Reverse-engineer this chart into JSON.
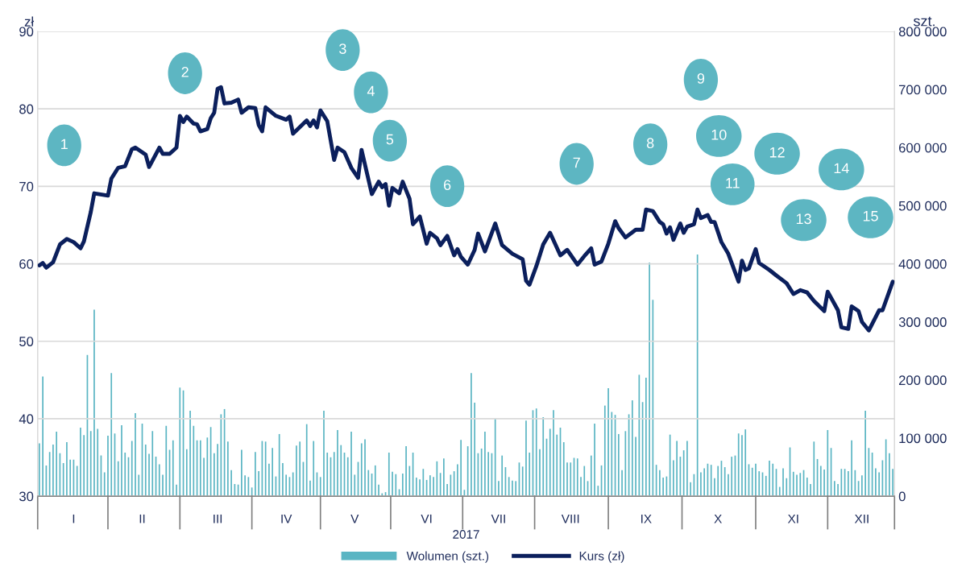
{
  "chart_data": {
    "type": "bar",
    "xlabel": "2017",
    "ylabel": "zł",
    "y2label": "szt.",
    "categories": [
      null,
      null,
      null,
      null,
      null,
      null,
      null,
      null,
      null,
      null,
      "I",
      null,
      null,
      null,
      null,
      null,
      null,
      null,
      null,
      null,
      null,
      null,
      null,
      null,
      null,
      null,
      null,
      null,
      null,
      null,
      "II",
      null,
      null,
      null,
      null,
      null,
      null,
      null,
      null,
      null,
      null,
      null,
      null,
      null,
      null,
      null,
      null,
      null,
      null,
      null,
      null,
      null,
      "III",
      null,
      null,
      null,
      null,
      null,
      null,
      null,
      null,
      null,
      null,
      null,
      null,
      null,
      null,
      null,
      null,
      null,
      null,
      null,
      "IV",
      null,
      null,
      null,
      null,
      null,
      null,
      null,
      null,
      null,
      null,
      null,
      null,
      null,
      null,
      null,
      null,
      null,
      null,
      null,
      "V",
      null,
      null,
      null,
      null,
      null,
      null,
      null,
      null,
      null,
      null,
      null,
      null,
      null,
      null,
      null,
      null,
      null,
      null,
      null,
      null,
      "VI",
      null,
      null,
      null,
      null,
      null,
      null,
      null,
      null,
      null,
      null,
      null,
      null,
      null,
      null,
      null,
      null,
      null,
      null,
      null,
      null,
      "VII",
      null,
      null,
      null,
      null,
      null,
      null,
      null,
      null,
      null,
      null,
      null,
      null,
      null,
      null,
      null,
      null,
      null,
      null,
      null,
      null,
      "VIII",
      null,
      null,
      null,
      null,
      null,
      null,
      null,
      null,
      null,
      null,
      null,
      null,
      null,
      null,
      null,
      null,
      null,
      null,
      null,
      null,
      null,
      "IX",
      null,
      null,
      null,
      null,
      null,
      null,
      null,
      null,
      null,
      null,
      null,
      null,
      null,
      null,
      null,
      null,
      null,
      null,
      null,
      null,
      "X",
      null,
      null,
      null,
      null,
      null,
      null,
      null,
      null,
      null,
      null,
      null,
      null,
      null,
      null,
      null,
      null,
      null,
      null,
      null,
      null,
      null,
      "XI",
      null,
      null,
      null,
      null,
      null,
      null,
      null,
      null,
      null,
      null,
      null,
      null,
      null,
      null,
      null,
      null,
      null,
      null,
      null,
      "XII",
      null,
      null,
      null,
      null,
      null,
      null,
      null,
      null,
      null
    ],
    "ylim": [
      30,
      90
    ],
    "yticks": [
      30,
      40,
      50,
      60,
      70,
      80,
      90
    ],
    "y2lim": [
      0,
      800000
    ],
    "y2ticks": [
      0,
      {
        "value": 100000,
        "label": "100 000"
      },
      {
        "value": 200000,
        "label": "200 000"
      },
      {
        "value": 300000,
        "label": "300 000"
      },
      {
        "value": 400000,
        "label": "400 000"
      },
      {
        "value": 500000,
        "label": "500 000"
      },
      {
        "value": 600000,
        "label": "600 000"
      },
      {
        "value": 700000,
        "label": "700 000"
      },
      {
        "value": 800000,
        "label": "800 000"
      }
    ],
    "grid": "y",
    "legend": "bottom",
    "series": [
      {
        "name": "Wolumen (szt.)",
        "axis": "y2",
        "color": "#5ab5c3",
        "values": [
          91000,
          206000,
          53000,
          76000,
          89000,
          111000,
          74000,
          57000,
          93000,
          63000,
          63000,
          52000,
          118000,
          105000,
          243000,
          112000,
          321000,
          116000,
          70000,
          41000,
          104000,
          212000,
          108000,
          60000,
          122000,
          75000,
          67000,
          95000,
          143000,
          37000,
          125000,
          89000,
          73000,
          112000,
          68000,
          55000,
          37000,
          121000,
          80000,
          96000,
          20000,
          187000,
          182000,
          81000,
          147000,
          121000,
          96000,
          96000,
          66000,
          101000,
          119000,
          74000,
          90000,
          141000,
          150000,
          94000,
          45000,
          21000,
          20000,
          80000,
          36000,
          33000,
          15000,
          76000,
          43000,
          95000,
          94000,
          56000,
          83000,
          34000,
          107000,
          57000,
          37000,
          33000,
          41000,
          87000,
          94000,
          59000,
          124000,
          27000,
          95000,
          41000,
          33000,
          147000,
          75000,
          67000,
          76000,
          114000,
          88000,
          75000,
          67000,
          111000,
          37000,
          59000,
          91000,
          98000,
          45000,
          39000,
          53000,
          20000,
          5000,
          7000,
          75000,
          42000,
          38000,
          12000,
          39000,
          86000,
          52000,
          75000,
          32000,
          29000,
          47000,
          28000,
          36000,
          33000,
          60000,
          40000,
          65000,
          21000,
          37000,
          43000,
          55000,
          97000,
          11000,
          86000,
          212000,
          161000,
          74000,
          82000,
          111000,
          76000,
          74000,
          133000,
          26000,
          70000,
          50000,
          33000,
          27000,
          26000,
          58000,
          51000,
          130000,
          75000,
          148000,
          151000,
          81000,
          136000,
          99000,
          116000,
          148000,
          106000,
          118000,
          93000,
          58000,
          58000,
          66000,
          65000,
          33000,
          52000,
          26000,
          70000,
          125000,
          18000,
          53000,
          156000,
          186000,
          145000,
          140000,
          107000,
          45000,
          112000,
          141000,
          165000,
          102000,
          209000,
          162000,
          204000,
          402000,
          338000,
          54000,
          45000,
          32000,
          34000,
          106000,
          62000,
          95000,
          68000,
          79000,
          95000,
          24000,
          38000,
          416000,
          41000,
          48000,
          56000,
          54000,
          31000,
          52000,
          61000,
          50000,
          38000,
          68000,
          70000,
          108000,
          105000,
          115000,
          55000,
          49000,
          56000,
          43000,
          41000,
          35000,
          61000,
          56000,
          47000,
          16000,
          48000,
          31000,
          84000,
          42000,
          37000,
          40000,
          45000,
          32000,
          21000,
          94000,
          64000,
          52000,
          46000,
          114000,
          83000,
          26000,
          21000,
          47000,
          47000,
          43000,
          96000,
          45000,
          26000,
          36000,
          147000,
          83000,
          75000,
          48000,
          41000,
          62000,
          98000,
          74000,
          47000
        ]
      },
      {
        "name": "Kurs (zł)",
        "type": "line",
        "color": "#0b1f5c",
        "values": [
          59.8,
          60.1,
          59.5,
          null,
          60.2,
          null,
          62.5,
          null,
          63.2,
          null,
          62.8,
          null,
          62.0,
          62.9,
          null,
          66.7,
          69.1,
          null,
          null,
          null,
          68.8,
          71.0,
          null,
          72.4,
          null,
          72.6,
          null,
          74.8,
          75.0,
          null,
          null,
          74.1,
          72.5,
          null,
          null,
          75.0,
          74.2,
          null,
          74.2,
          null,
          75.0,
          79.1,
          78.3,
          79.0,
          null,
          78.1,
          78.0,
          77.1,
          null,
          77.4,
          78.8,
          79.5,
          82.6,
          82.8,
          80.7,
          null,
          80.8,
          null,
          81.2,
          79.5,
          null,
          80.2,
          null,
          80.1,
          77.9,
          77.1,
          80.2,
          null,
          null,
          79.1,
          null,
          null,
          78.6,
          79.0,
          76.8,
          null,
          null,
          null,
          78.5,
          77.8,
          78.5,
          77.6,
          79.8,
          null,
          78.4,
          null,
          73.4,
          75.0,
          null,
          74.4,
          null,
          72.4,
          null,
          71.1,
          74.7,
          null,
          null,
          69.0,
          null,
          70.6,
          69.9,
          70.3,
          67.5,
          69.8,
          null,
          69.1,
          70.6,
          null,
          68.4,
          65.1,
          null,
          66.1,
          null,
          62.6,
          64.0,
          null,
          63.3,
          62.4,
          null,
          63.6,
          null,
          61.1,
          61.9,
          60.9,
          null,
          59.9,
          null,
          61.8,
          63.9,
          null,
          61.6,
          null,
          null,
          65.2,
          null,
          62.4,
          null,
          null,
          61.3,
          null,
          null,
          60.6,
          57.8,
          57.3,
          null,
          59.7,
          null,
          62.5,
          null,
          64.0,
          null,
          null,
          61.1,
          null,
          61.8,
          null,
          null,
          59.9,
          null,
          61.0,
          null,
          62.0,
          59.9,
          null,
          60.3,
          null,
          62.6,
          null,
          65.5,
          64.6,
          null,
          63.4,
          null,
          null,
          64.4,
          null,
          64.4,
          67.0,
          null,
          66.8,
          null,
          65.4,
          65.1,
          63.9,
          64.7,
          63.1,
          null,
          65.2,
          64.0,
          64.8,
          null,
          65.1,
          67.0,
          65.9,
          null,
          66.3,
          65.4,
          65.4,
          null,
          62.8,
          null,
          61.3,
          null,
          null,
          57.7,
          60.4,
          59.2,
          59.4,
          null,
          61.9,
          60.1,
          null,
          null,
          59.2,
          null,
          58.5,
          null,
          null,
          57.5,
          null,
          56.1,
          null,
          56.6,
          null,
          56.3,
          null,
          55.2,
          null,
          null,
          53.9,
          56.4,
          null,
          null,
          54.0,
          51.8,
          null,
          51.6,
          54.5,
          null,
          53.9,
          52.5,
          null,
          51.4,
          null,
          null,
          54.0,
          54.0,
          null,
          null,
          57.7
        ]
      }
    ],
    "annotations": [
      "1",
      "2",
      "3",
      "4",
      "5",
      "6",
      "7",
      "8",
      "9",
      "10",
      "11",
      "12",
      "13",
      "14",
      "15"
    ]
  }
}
